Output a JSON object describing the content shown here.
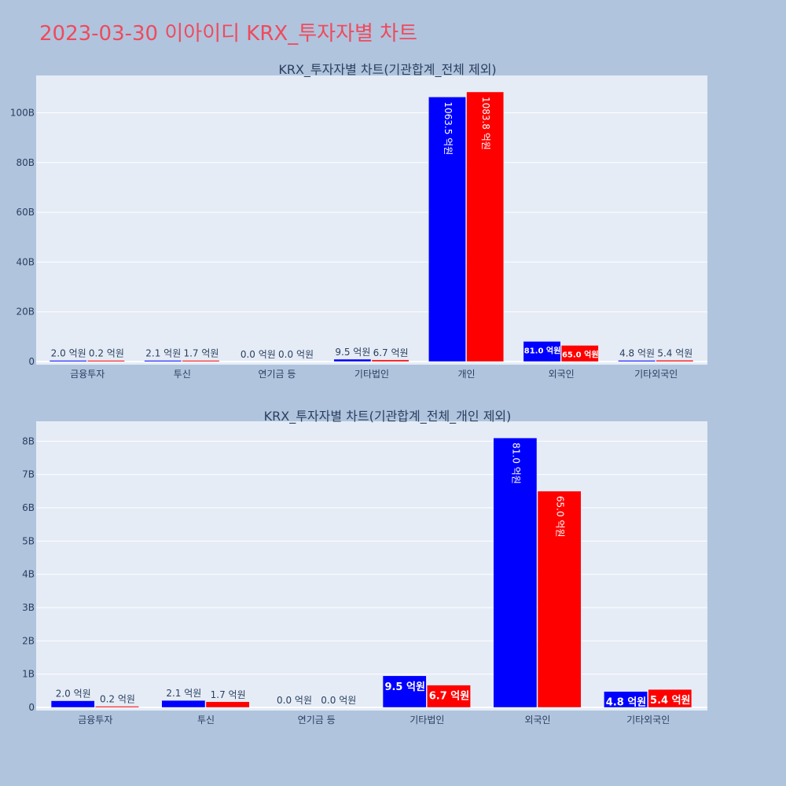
{
  "page": {
    "title": "2023-03-30 이아이디 KRX_투자자별 차트"
  },
  "colors": {
    "page_bg": "#b0c4de",
    "plot_bg": "#e5ecf6",
    "grid": "#ffffff",
    "buy": "#0000ff",
    "sell": "#ff0000",
    "title": "#ef4a5c",
    "text": "#2a3f5f"
  },
  "chart_data": [
    {
      "type": "bar",
      "title": "KRX_투자자별 차트(기관합계_전체 제외)",
      "categories": [
        "금융투자",
        "투신",
        "연기금 등",
        "기타법인",
        "개인",
        "외국인",
        "기타외국인"
      ],
      "series": [
        {
          "color": "#0000ff",
          "values": [
            0.2,
            0.21,
            0.0,
            0.95,
            106.35,
            8.1,
            0.48
          ],
          "labels": [
            "2.0 억원",
            "2.1 억원",
            "0.0 억원",
            "9.5 억원",
            "1063.5 억원",
            "81.0 억원",
            "4.8 억원"
          ]
        },
        {
          "color": "#ff0000",
          "values": [
            0.02,
            0.17,
            0.0,
            0.67,
            108.38,
            6.5,
            0.54
          ],
          "labels": [
            "0.2 억원",
            "1.7 억원",
            "0.0 억원",
            "6.7 억원",
            "1083.8 억원",
            "65.0 억원",
            "5.4 억원"
          ]
        }
      ],
      "ylim": [
        0,
        115
      ],
      "yticks": [
        0,
        20,
        40,
        60,
        80,
        100
      ],
      "ytick_labels": [
        "0",
        "20B",
        "40B",
        "60B",
        "80B",
        "100B"
      ],
      "grid": true,
      "xlabel": "",
      "ylabel": ""
    },
    {
      "type": "bar",
      "title": "KRX_투자자별 차트(기관합계_전체_개인 제외)",
      "categories": [
        "금융투자",
        "투신",
        "연기금 등",
        "기타법인",
        "외국인",
        "기타외국인"
      ],
      "series": [
        {
          "color": "#0000ff",
          "values": [
            0.2,
            0.21,
            0.0,
            0.95,
            8.1,
            0.48
          ],
          "labels": [
            "2.0 억원",
            "2.1 억원",
            "0.0 억원",
            "9.5 억원",
            "81.0 억원",
            "4.8 억원"
          ]
        },
        {
          "color": "#ff0000",
          "values": [
            0.02,
            0.17,
            0.0,
            0.67,
            6.5,
            0.54
          ],
          "labels": [
            "0.2 억원",
            "1.7 억원",
            "0.0 억원",
            "6.7 억원",
            "65.0 억원",
            "5.4 억원"
          ]
        }
      ],
      "ylim": [
        0,
        8.6
      ],
      "yticks": [
        0,
        1,
        2,
        3,
        4,
        5,
        6,
        7,
        8
      ],
      "ytick_labels": [
        "0",
        "1B",
        "2B",
        "3B",
        "4B",
        "5B",
        "6B",
        "7B",
        "8B"
      ],
      "grid": true,
      "xlabel": "",
      "ylabel": ""
    }
  ]
}
